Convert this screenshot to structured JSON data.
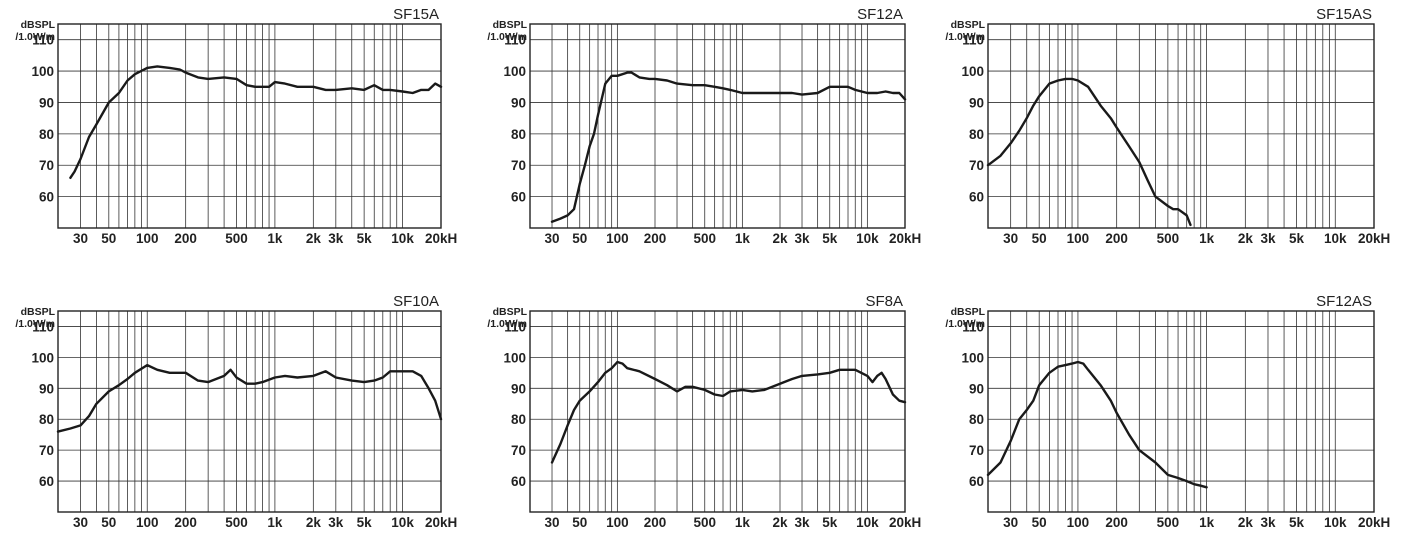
{
  "charts_common": {
    "y_unit_line1": "dBSPL",
    "y_unit_line2": "/1.0W/m",
    "x_ticks_text": [
      "30",
      "50",
      "100",
      "200",
      "500",
      "1k",
      "2k",
      "3k",
      "5k",
      "10k",
      "20kH"
    ],
    "y_ticks_text": [
      "110",
      "100",
      "90",
      "80",
      "70",
      "60"
    ]
  },
  "chart_data": [
    {
      "type": "line",
      "title": "SF15A",
      "xscale": "log",
      "xlim": [
        20,
        20000
      ],
      "ylim": [
        50,
        115
      ],
      "grid": true,
      "series": [
        {
          "x": [
            25,
            27,
            30,
            35,
            40,
            50,
            60,
            70,
            80,
            100,
            120,
            150,
            180,
            200,
            250,
            300,
            400,
            500,
            600,
            700,
            800,
            900,
            1000,
            1200,
            1500,
            2000,
            2500,
            3000,
            4000,
            5000,
            6000,
            7000,
            8000,
            10000,
            12000,
            14000,
            16000,
            18000,
            20000
          ],
          "y": [
            66,
            68,
            72,
            79,
            83,
            90,
            93,
            97,
            99,
            101,
            101.5,
            101,
            100.5,
            99.5,
            98,
            97.5,
            98,
            97.5,
            95.5,
            95,
            95,
            95,
            96.5,
            96,
            95,
            95,
            94,
            94,
            94.5,
            94,
            95.5,
            94,
            94,
            93.5,
            93,
            94,
            94,
            96,
            95
          ]
        }
      ]
    },
    {
      "type": "line",
      "title": "SF12A",
      "xscale": "log",
      "xlim": [
        20,
        20000
      ],
      "ylim": [
        50,
        115
      ],
      "grid": true,
      "series": [
        {
          "x": [
            30,
            35,
            40,
            45,
            50,
            55,
            60,
            65,
            70,
            80,
            90,
            100,
            120,
            130,
            150,
            180,
            200,
            250,
            300,
            400,
            500,
            600,
            700,
            800,
            1000,
            1200,
            1500,
            2000,
            2500,
            3000,
            4000,
            5000,
            6000,
            7000,
            8000,
            10000,
            12000,
            14000,
            16000,
            18000,
            20000
          ],
          "y": [
            52,
            53,
            54,
            56,
            64,
            70,
            76,
            80,
            86,
            96,
            98.5,
            98.5,
            99.5,
            99.5,
            98,
            97.5,
            97.5,
            97,
            96,
            95.5,
            95.5,
            95,
            94.5,
            94,
            93,
            93,
            93,
            93,
            93,
            92.5,
            93,
            95,
            95,
            95,
            94,
            93,
            93,
            93.5,
            93,
            93,
            91
          ]
        }
      ]
    },
    {
      "type": "line",
      "title": "SF15AS",
      "xscale": "log",
      "xlim": [
        20,
        20000
      ],
      "ylim": [
        50,
        115
      ],
      "grid": true,
      "series": [
        {
          "x": [
            20,
            25,
            30,
            35,
            40,
            45,
            50,
            60,
            70,
            80,
            90,
            100,
            120,
            150,
            180,
            200,
            250,
            300,
            350,
            400,
            500,
            550,
            600,
            700,
            750
          ],
          "y": [
            70,
            73,
            77,
            81,
            85,
            89,
            92,
            96,
            97,
            97.5,
            97.5,
            97,
            95,
            89,
            85,
            82,
            76,
            71,
            65,
            60,
            57,
            56,
            56,
            54,
            51
          ]
        }
      ]
    },
    {
      "type": "line",
      "title": "SF10A",
      "xscale": "log",
      "xlim": [
        20,
        20000
      ],
      "ylim": [
        50,
        115
      ],
      "grid": true,
      "series": [
        {
          "x": [
            20,
            25,
            30,
            35,
            40,
            50,
            60,
            70,
            80,
            100,
            120,
            150,
            200,
            250,
            300,
            400,
            450,
            500,
            600,
            700,
            800,
            1000,
            1200,
            1500,
            2000,
            2500,
            3000,
            4000,
            5000,
            6000,
            7000,
            8000,
            10000,
            12000,
            14000,
            16000,
            18000,
            20000
          ],
          "y": [
            76,
            77,
            78,
            81,
            85,
            89,
            91,
            93,
            95,
            97.5,
            96,
            95,
            95,
            92.5,
            92,
            94,
            96,
            93.5,
            91.5,
            91.5,
            92,
            93.5,
            94,
            93.5,
            94,
            95.5,
            93.5,
            92.5,
            92,
            92.5,
            93.5,
            95.5,
            95.5,
            95.5,
            94,
            90,
            86,
            80
          ]
        }
      ]
    },
    {
      "type": "line",
      "title": "SF8A",
      "xscale": "log",
      "xlim": [
        20,
        20000
      ],
      "ylim": [
        50,
        115
      ],
      "grid": true,
      "series": [
        {
          "x": [
            30,
            35,
            40,
            45,
            50,
            60,
            70,
            80,
            90,
            100,
            110,
            120,
            150,
            200,
            250,
            300,
            350,
            400,
            500,
            600,
            700,
            800,
            1000,
            1200,
            1500,
            2000,
            2500,
            3000,
            4000,
            5000,
            6000,
            7000,
            8000,
            10000,
            11000,
            12000,
            13000,
            14000,
            16000,
            18000,
            20000
          ],
          "y": [
            66,
            72,
            78,
            83,
            86,
            89,
            92,
            95,
            96.5,
            98.5,
            98,
            96.5,
            95.5,
            93,
            91,
            89,
            90.5,
            90.5,
            89.5,
            88,
            87.5,
            89,
            89.5,
            89,
            89.5,
            91.5,
            93,
            94,
            94.5,
            95,
            96,
            96,
            96,
            94,
            92,
            94,
            95,
            93,
            88,
            86,
            85.5
          ]
        }
      ]
    },
    {
      "type": "line",
      "title": "SF12AS",
      "xscale": "log",
      "xlim": [
        20,
        20000
      ],
      "ylim": [
        50,
        115
      ],
      "grid": true,
      "series": [
        {
          "x": [
            20,
            25,
            30,
            35,
            40,
            45,
            50,
            60,
            70,
            80,
            90,
            100,
            110,
            120,
            150,
            180,
            200,
            250,
            300,
            400,
            500,
            600,
            700,
            800,
            900,
            1000
          ],
          "y": [
            62,
            66,
            73,
            80,
            83,
            86,
            91,
            95,
            97,
            97.5,
            98,
            98.5,
            98,
            96,
            91,
            86,
            82,
            75,
            70,
            66,
            62,
            61,
            60,
            59,
            58.5,
            58
          ]
        }
      ]
    }
  ]
}
